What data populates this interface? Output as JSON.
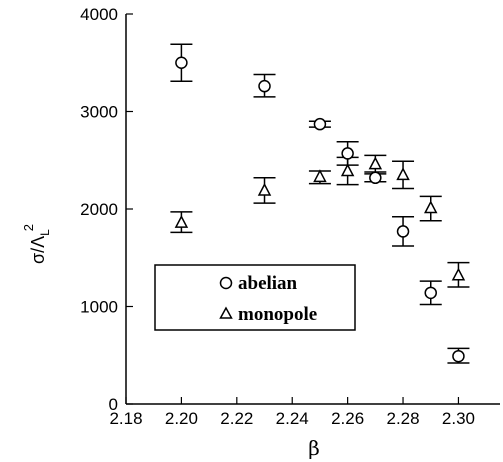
{
  "chart_data": {
    "type": "scatter",
    "xlabel": "β",
    "ylabel": {
      "main": "σ/Λ",
      "sub": "L",
      "sup": "2"
    },
    "xlim": [
      2.18,
      2.315
    ],
    "ylim": [
      0,
      4000
    ],
    "x_ticks": [
      "2.18",
      "2.20",
      "2.22",
      "2.24",
      "2.26",
      "2.28",
      "2.30"
    ],
    "x_tick_values": [
      2.18,
      2.2,
      2.22,
      2.24,
      2.26,
      2.28,
      2.3
    ],
    "y_ticks": [
      "0",
      "1000",
      "2000",
      "3000",
      "4000"
    ],
    "y_tick_values": [
      0,
      1000,
      2000,
      3000,
      4000
    ],
    "grid": false,
    "legend_position": "lower-left",
    "series": [
      {
        "name": "abelian",
        "marker": "circle",
        "points": [
          {
            "x": 2.2,
            "y": 3500,
            "lo": 3310,
            "hi": 3690
          },
          {
            "x": 2.23,
            "y": 3260,
            "lo": 3150,
            "hi": 3380
          },
          {
            "x": 2.25,
            "y": 2870,
            "lo": 2840,
            "hi": 2900
          },
          {
            "x": 2.26,
            "y": 2570,
            "lo": 2450,
            "hi": 2690
          },
          {
            "x": 2.27,
            "y": 2320,
            "lo": 2280,
            "hi": 2360
          },
          {
            "x": 2.28,
            "y": 1770,
            "lo": 1620,
            "hi": 1920
          },
          {
            "x": 2.29,
            "y": 1140,
            "lo": 1020,
            "hi": 1260
          },
          {
            "x": 2.3,
            "y": 490,
            "lo": 420,
            "hi": 570
          }
        ]
      },
      {
        "name": "monopole",
        "marker": "triangle",
        "points": [
          {
            "x": 2.2,
            "y": 1860,
            "lo": 1760,
            "hi": 1970
          },
          {
            "x": 2.23,
            "y": 2190,
            "lo": 2060,
            "hi": 2320
          },
          {
            "x": 2.25,
            "y": 2330,
            "lo": 2260,
            "hi": 2390
          },
          {
            "x": 2.26,
            "y": 2390,
            "lo": 2250,
            "hi": 2530
          },
          {
            "x": 2.27,
            "y": 2460,
            "lo": 2380,
            "hi": 2550
          },
          {
            "x": 2.28,
            "y": 2350,
            "lo": 2210,
            "hi": 2490
          },
          {
            "x": 2.29,
            "y": 2010,
            "lo": 1880,
            "hi": 2130
          },
          {
            "x": 2.3,
            "y": 1320,
            "lo": 1200,
            "hi": 1450
          }
        ]
      }
    ]
  }
}
